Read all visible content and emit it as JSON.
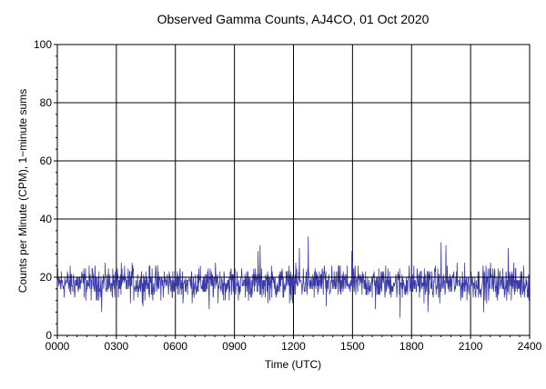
{
  "chart_data": {
    "type": "line",
    "title": "Observed Gamma Counts, AJ4CO, 01 Oct 2020",
    "xlabel": "Time (UTC)",
    "ylabel": "Counts per Minute (CPM), 1−minute sums",
    "x_tick_labels": [
      "0000",
      "0300",
      "0600",
      "0900",
      "1200",
      "1500",
      "1800",
      "2100",
      "2400"
    ],
    "y_tick_labels": [
      "0",
      "20",
      "40",
      "60",
      "80",
      "100"
    ],
    "xlim": [
      0,
      24
    ],
    "ylim": [
      0,
      100
    ],
    "x_unit": "hours UTC",
    "grid": true,
    "legend": "none",
    "reference_line": {
      "y": 20
    },
    "series": [
      {
        "color": "#3a3aa8",
        "values_per_minute_summary": "1440 one-minute samples, mostly 12–26 CPM around a mean near 18, with spikes up to ~34",
        "x": [
          0.0,
          0.5,
          1.0,
          1.5,
          2.0,
          2.5,
          3.0,
          3.5,
          4.0,
          4.5,
          5.0,
          5.5,
          6.0,
          6.5,
          7.0,
          7.5,
          8.0,
          8.5,
          9.0,
          9.5,
          10.0,
          10.25,
          10.5,
          11.0,
          11.5,
          12.0,
          12.5,
          13.0,
          13.5,
          14.0,
          14.5,
          15.0,
          15.5,
          16.0,
          16.5,
          17.0,
          17.5,
          18.0,
          18.5,
          19.0,
          19.5,
          20.0,
          20.5,
          21.0,
          21.5,
          22.0,
          22.5,
          23.0,
          23.5,
          24.0
        ],
        "y": [
          18,
          19,
          17,
          20,
          18,
          17,
          19,
          18,
          17,
          19,
          18,
          20,
          17,
          18,
          19,
          18,
          17,
          20,
          18,
          19,
          18,
          31,
          19,
          18,
          17,
          19,
          20,
          18,
          19,
          17,
          18,
          19,
          18,
          17,
          19,
          18,
          20,
          18,
          17,
          19,
          18,
          20,
          19,
          18,
          17,
          19,
          18,
          17,
          19,
          18
        ],
        "spread": 5
      }
    ]
  }
}
